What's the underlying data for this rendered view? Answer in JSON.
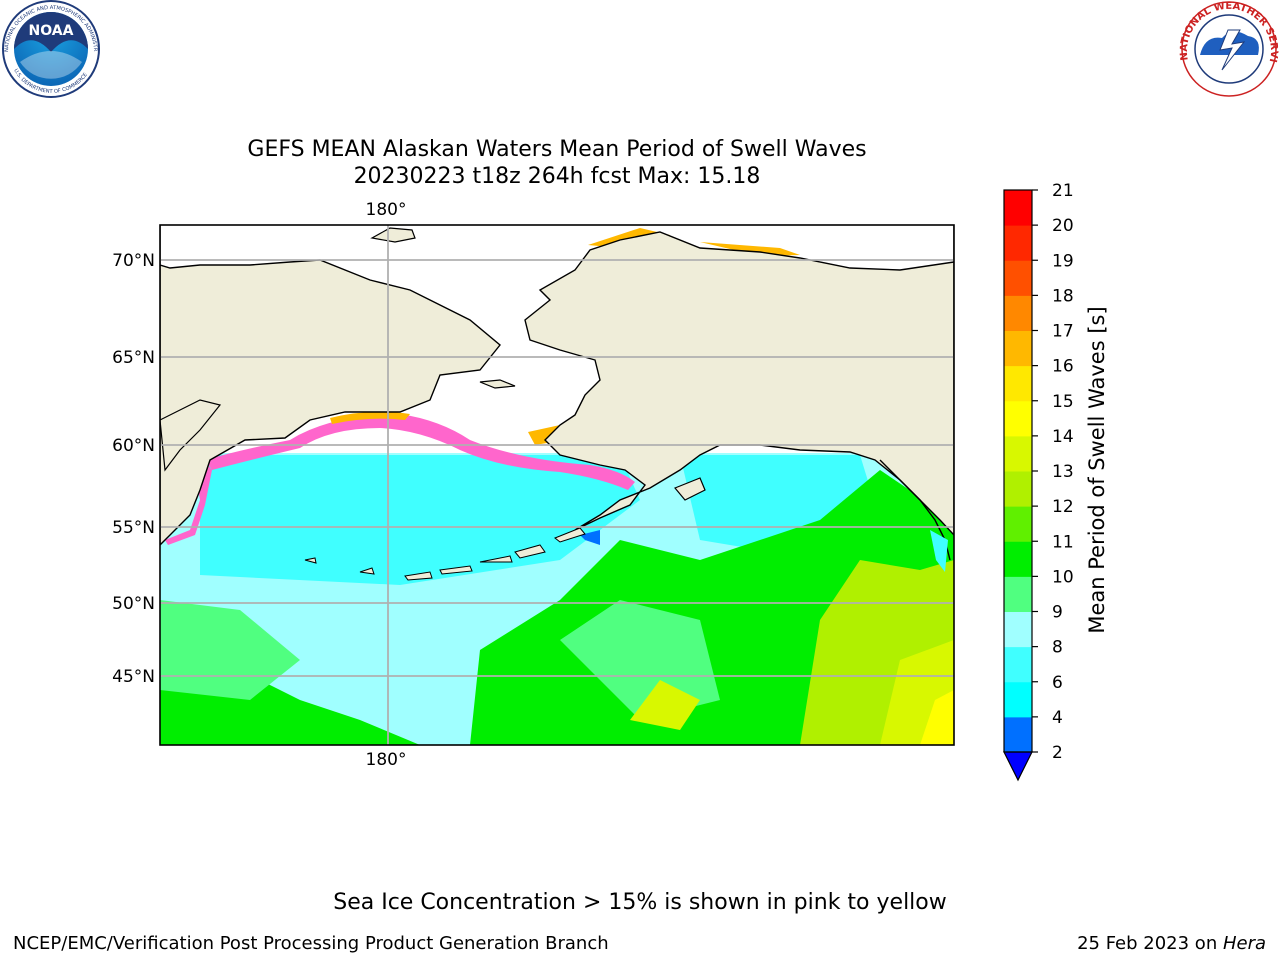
{
  "title": {
    "line1": "GEFS MEAN Alaskan Waters Mean Period of Swell Waves",
    "line2": "20230223 t18z 264h fcst   Max: 15.18"
  },
  "logos": {
    "noara_text": "NOAA",
    "noaa_ring_text": "NATIONAL OCEANIC AND ATMOSPHERIC ADMINISTRATION",
    "noaa_ring_text2": "U.S. DEPARTMENT OF COMMERCE",
    "nws_ring_text": "NATIONAL WEATHER SERVICE"
  },
  "chart_data": {
    "type": "heatmap",
    "title": "GEFS MEAN Alaskan Waters Mean Period of Swell Waves",
    "subtitle": "20230223 t18z 264h fcst   Max: 15.18",
    "max_value": 15.18,
    "lat_ticks": [
      "70°N",
      "65°N",
      "60°N",
      "55°N",
      "50°N",
      "45°N"
    ],
    "lon_ticks_top": [
      "180°"
    ],
    "lon_ticks_bottom": [
      "180°"
    ],
    "grid": true,
    "colorbar": {
      "label": "Mean Period of Swell Waves [s]",
      "ticks": [
        2,
        4,
        6,
        8,
        9,
        10,
        11,
        12,
        13,
        14,
        15,
        16,
        17,
        18,
        19,
        20,
        21
      ],
      "colors": [
        "#0000ff",
        "#0070ff",
        "#00ffff",
        "#40ffff",
        "#a0ffff",
        "#50ff80",
        "#00ee00",
        "#60f000",
        "#b0f000",
        "#d8f800",
        "#ffff00",
        "#ffe800",
        "#ffb800",
        "#ff8800",
        "#ff5000",
        "#ff2800",
        "#ff0000"
      ],
      "extend": "min"
    },
    "colors": {
      "land": "#efedd9",
      "ice_pink": "#ff66cc",
      "grid": "#b0b0b0"
    }
  },
  "annotation": "Sea Ice Concentration > 15% is shown in pink to yellow",
  "footer": {
    "left": "NCEP/EMC/Verification Post Processing Product Generation Branch",
    "right_date": "25 Feb 2023 on ",
    "right_host": "Hera"
  }
}
